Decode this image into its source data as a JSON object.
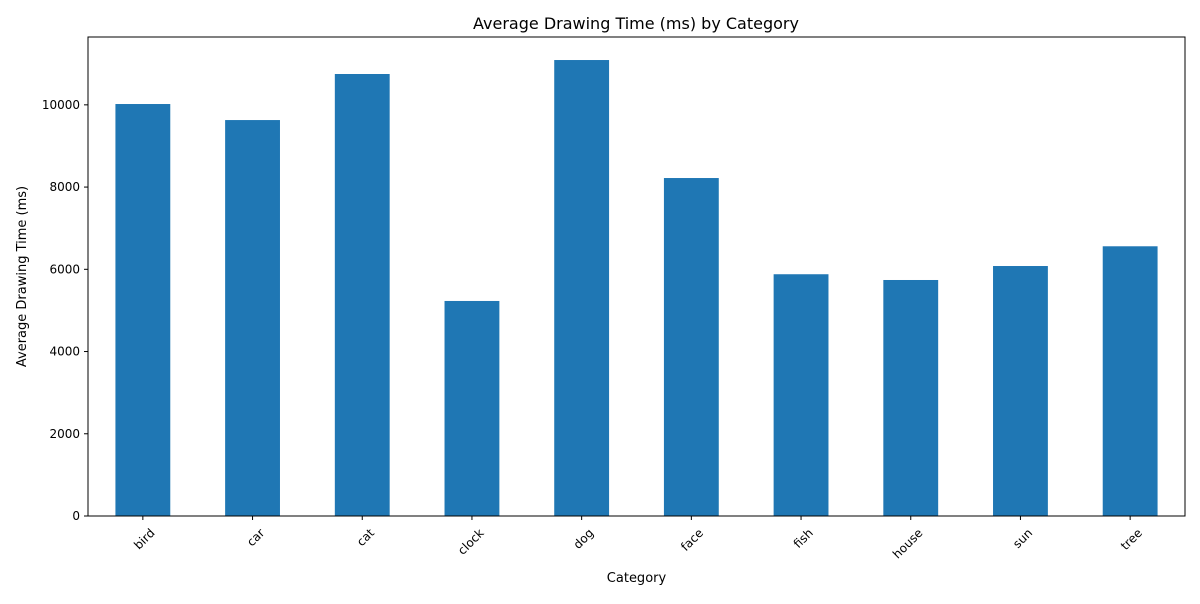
{
  "chart_data": {
    "type": "bar",
    "title": "Average Drawing Time (ms) by Category",
    "xlabel": "Category",
    "ylabel": "Average Drawing Time (ms)",
    "categories": [
      "bird",
      "car",
      "cat",
      "clock",
      "dog",
      "face",
      "fish",
      "house",
      "sun",
      "tree"
    ],
    "values": [
      10020,
      9630,
      10750,
      5230,
      11090,
      8220,
      5880,
      5740,
      6080,
      6560
    ],
    "ylim": [
      0,
      11650
    ],
    "yticks": [
      0,
      2000,
      4000,
      6000,
      8000,
      10000
    ],
    "grid": false,
    "legend": "none",
    "bar_color": "#1f77b4"
  }
}
